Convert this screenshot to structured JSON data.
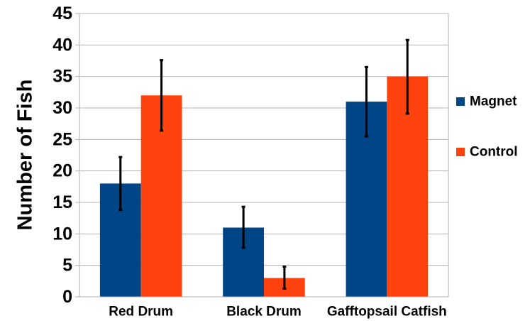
{
  "chart_data": {
    "type": "bar",
    "title": "",
    "xlabel": "",
    "ylabel": "Number of Fish",
    "ylim": [
      0,
      45
    ],
    "yticks": [
      0,
      5,
      10,
      15,
      20,
      25,
      30,
      35,
      40,
      45
    ],
    "grid": "horizontal",
    "legend_position": "right",
    "categories": [
      "Red Drum",
      "Black Drum",
      "Gafftopsail Catfish"
    ],
    "series": [
      {
        "name": "Magnet",
        "color": "#004586",
        "values": [
          18,
          11,
          31
        ],
        "error_low": [
          13.8,
          7.8,
          25.5
        ],
        "error_high": [
          22.2,
          14.3,
          36.5
        ]
      },
      {
        "name": "Control",
        "color": "#ff420e",
        "values": [
          32,
          3,
          35
        ],
        "error_low": [
          26.4,
          1.3,
          29.1
        ],
        "error_high": [
          37.6,
          4.8,
          40.8
        ]
      }
    ]
  }
}
